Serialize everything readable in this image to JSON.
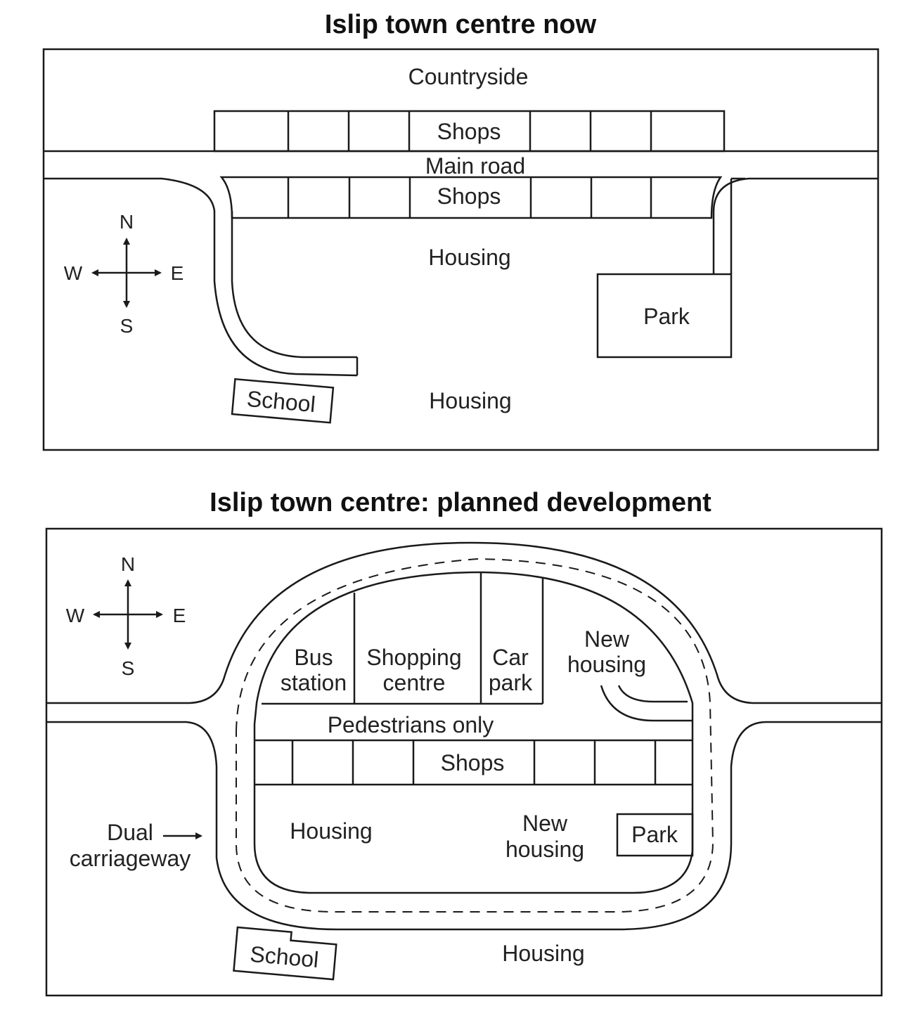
{
  "map1": {
    "title": "Islip town centre now",
    "labels": {
      "countryside": "Countryside",
      "shops_north": "Shops",
      "main_road": "Main road",
      "shops_south": "Shops",
      "housing_center": "Housing",
      "park": "Park",
      "school": "School",
      "housing_south": "Housing"
    },
    "compass": {
      "n": "N",
      "s": "S",
      "e": "E",
      "w": "W"
    }
  },
  "map2": {
    "title": "Islip town centre: planned development",
    "labels": {
      "bus_station_1": "Bus",
      "bus_station_2": "station",
      "shopping_centre_1": "Shopping",
      "shopping_centre_2": "centre",
      "car_park_1": "Car",
      "car_park_2": "park",
      "new_housing_north_1": "New",
      "new_housing_north_2": "housing",
      "pedestrians_only": "Pedestrians only",
      "shops": "Shops",
      "housing_west": "Housing",
      "new_housing_south_1": "New",
      "new_housing_south_2": "housing",
      "park": "Park",
      "dual_carriageway_1": "Dual",
      "dual_carriageway_2": "carriageway",
      "school": "School",
      "housing_south": "Housing"
    },
    "compass": {
      "n": "N",
      "s": "S",
      "e": "E",
      "w": "W"
    }
  },
  "colors": {
    "line": "#1a1a1a",
    "text": "#222222",
    "background": "#ffffff"
  }
}
